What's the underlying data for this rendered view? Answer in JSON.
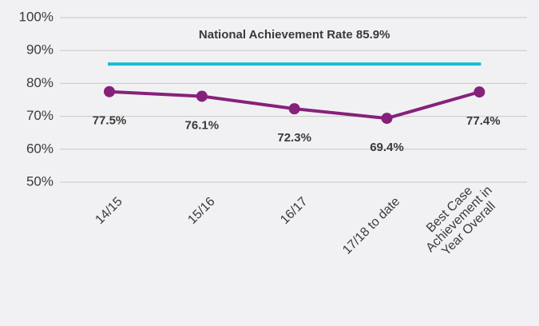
{
  "chart_data": {
    "type": "line",
    "categories": [
      "14/15",
      "15/16",
      "16/17",
      "17/18 to date",
      "Best Case\nAchievement  in\nYear Overall"
    ],
    "values": [
      77.5,
      76.1,
      72.3,
      69.4,
      77.4
    ],
    "value_labels": [
      "77.5%",
      "76.1%",
      "72.3%",
      "69.4%",
      "77.4%"
    ],
    "color": "#86217b",
    "reference_lines": [
      {
        "value": 85.9,
        "label": "National Achievement Rate 85.9%",
        "color": "#1bbbd8"
      }
    ],
    "ylim": [
      50,
      100
    ],
    "yticks": [
      {
        "value": 50,
        "label": "50%"
      },
      {
        "value": 60,
        "label": "60%"
      },
      {
        "value": 70,
        "label": "70%"
      },
      {
        "value": 80,
        "label": "80%"
      },
      {
        "value": 90,
        "label": "90%"
      },
      {
        "value": 100,
        "label": "100%"
      }
    ],
    "grid": true
  }
}
